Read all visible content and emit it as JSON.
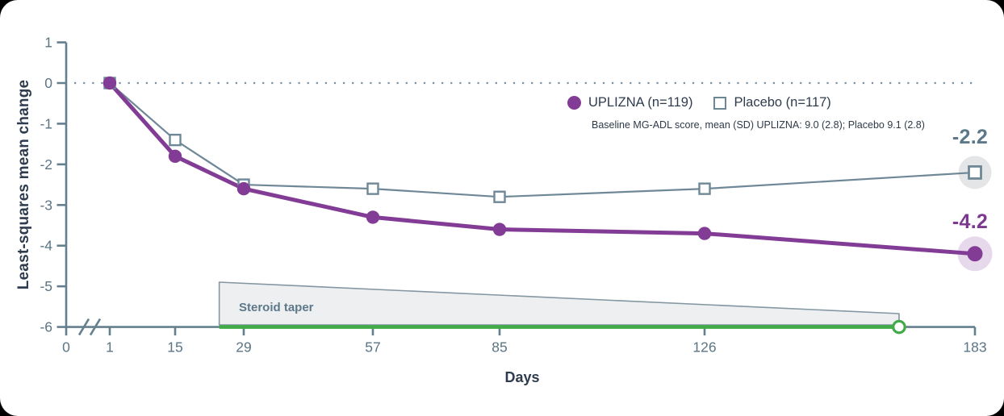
{
  "colors": {
    "uplizna": "#833c95",
    "uplizna_label": "#7c3990",
    "placebo": "#6f8897",
    "axis": "#64808f",
    "tick_text": "#5b7585",
    "dark_text": "#2e3c4e",
    "green": "#41ab47",
    "halo_gray": "#e4e5e6",
    "halo_purple": "#e7d9ec",
    "taper_fill": "#edeff1",
    "taper_stroke": "#8396a2",
    "taper_text": "#5d7889",
    "dotted": "#7a90a0",
    "placebo_end_label": "#5d7889"
  },
  "legend": {
    "uplizna_label": "UPLIZNA (n=119)",
    "placebo_label": "Placebo (n=117)",
    "subtitle": "Baseline MG-ADL  score, mean (SD) UPLIZNA: 9.0 (2.8); Placebo 9.1 (2.8)"
  },
  "annotations": {
    "placebo_end": "-2.2",
    "uplizna_end": "-4.2",
    "taper_label": "Steroid taper"
  },
  "chart_data": {
    "type": "line",
    "title": "",
    "xlabel": "Days",
    "ylabel": "Least-squares mean change",
    "x": [
      1,
      15,
      29,
      57,
      85,
      126,
      183
    ],
    "x_ticks": [
      0,
      1,
      15,
      29,
      57,
      85,
      126,
      183
    ],
    "y_ticks": [
      1,
      0,
      -1,
      -2,
      -3,
      -4,
      -5,
      -6
    ],
    "ylim": [
      -6,
      1
    ],
    "axis_break_after_zero": true,
    "zero_line_style": "dotted",
    "legend_position": "top-right-inside",
    "grid": false,
    "series": [
      {
        "name": "UPLIZNA (n=119)",
        "marker": "circle",
        "values": [
          0,
          -1.8,
          -2.6,
          -3.3,
          -3.6,
          -3.7,
          -4.2
        ],
        "end_value_label": "-4.2"
      },
      {
        "name": "Placebo (n=117)",
        "marker": "square",
        "values": [
          0,
          -1.4,
          -2.5,
          -2.6,
          -2.8,
          -2.6,
          -2.2
        ],
        "end_value_label": "-2.2"
      }
    ],
    "steroid_taper": {
      "label": "Steroid taper",
      "start_day": 24,
      "end_day": 167
    }
  }
}
